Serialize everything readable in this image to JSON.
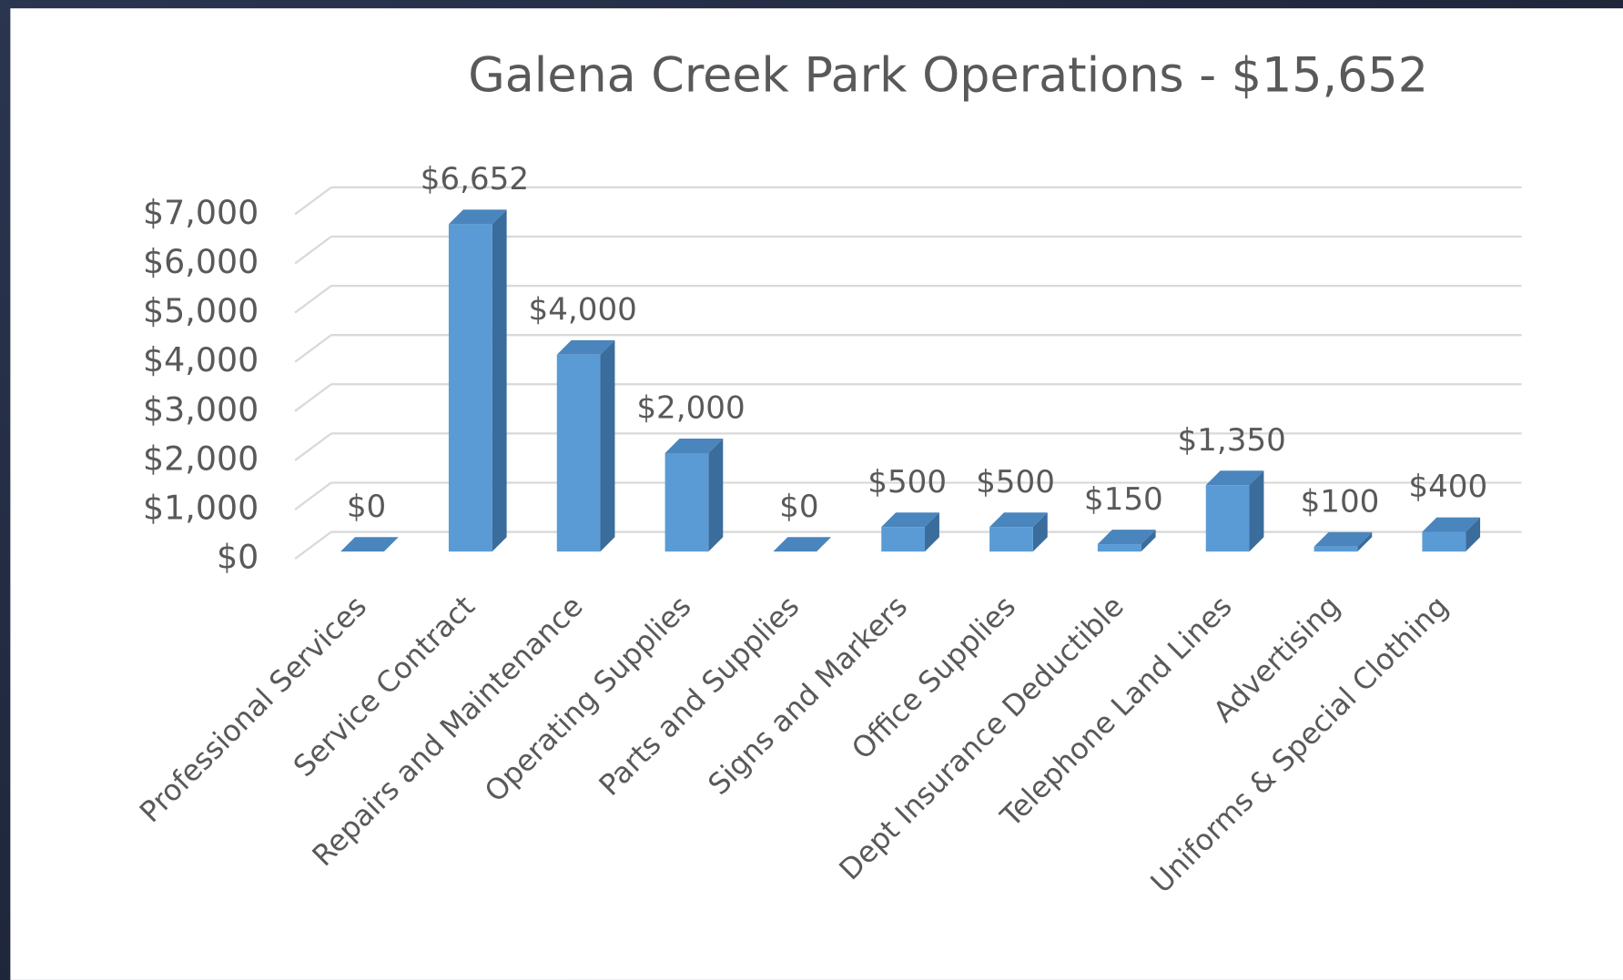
{
  "chart_data": {
    "type": "bar3d",
    "title": "Galena Creek Park Operations - $15,652",
    "categories": [
      "Professional Services",
      "Service Contract",
      "Repairs and Maintenance",
      "Operating Supplies",
      "Parts and Supplies",
      "Signs and Markers",
      "Office Supplies",
      "Dept Insurance Deductible",
      "Telephone Land Lines",
      "Advertising",
      "Uniforms & Special Clothing"
    ],
    "values": [
      0,
      6652,
      4000,
      2000,
      0,
      500,
      500,
      150,
      1350,
      100,
      400
    ],
    "value_labels": [
      "$0",
      "$6,652",
      "$4,000",
      "$2,000",
      "$0",
      "$500",
      "$500",
      "$150",
      "$1,350",
      "$100",
      "$400"
    ],
    "color": "#5b9bd5",
    "ylim": [
      0,
      7000
    ],
    "yticks": [
      {
        "value": 0,
        "label": "$0"
      },
      {
        "value": 1000,
        "label": "$1,000"
      },
      {
        "value": 2000,
        "label": "$2,000"
      },
      {
        "value": 3000,
        "label": "$3,000"
      },
      {
        "value": 4000,
        "label": "$4,000"
      },
      {
        "value": 5000,
        "label": "$5,000"
      },
      {
        "value": 6000,
        "label": "$6,000"
      },
      {
        "value": 7000,
        "label": "$7,000"
      }
    ],
    "grid": true
  }
}
